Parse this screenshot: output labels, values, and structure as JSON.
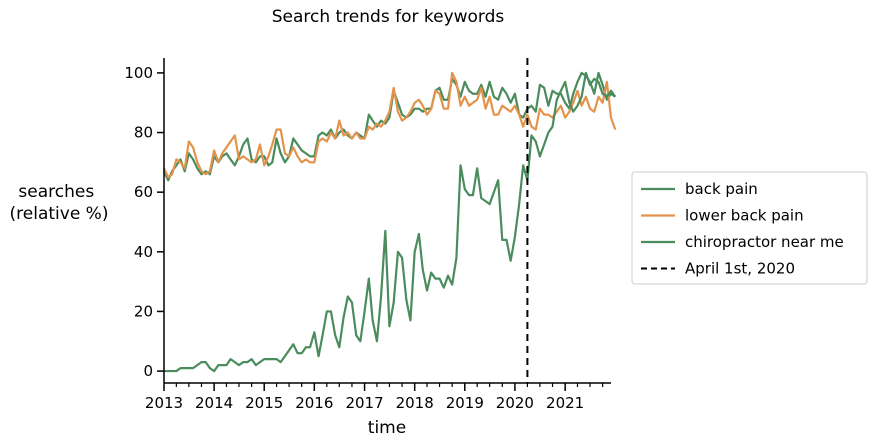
{
  "chart_data": {
    "type": "line",
    "title": "Search trends for keywords",
    "xlabel": "time",
    "ylabel": [
      "searches",
      "(relative %)"
    ],
    "xlim": [
      "2013-01-01",
      "2021-12-01"
    ],
    "ylim": [
      -4,
      105
    ],
    "x_ticks": [
      "2013",
      "2014",
      "2015",
      "2016",
      "2017",
      "2018",
      "2019",
      "2020",
      "2021"
    ],
    "y_ticks": [
      0,
      20,
      40,
      60,
      80,
      100
    ],
    "grid": false,
    "legend_position": "right",
    "x_start": "2013-01",
    "series": [
      {
        "name": "back pain",
        "color": "#4a8c5c",
        "values": [
          67,
          64,
          67,
          69,
          71,
          67,
          73,
          71,
          68,
          66,
          67,
          66,
          72,
          70,
          72,
          73,
          71,
          69,
          72,
          76,
          78,
          71,
          70,
          72,
          72,
          69,
          70,
          78,
          73,
          70,
          72,
          78,
          76,
          74,
          73,
          72,
          72,
          79,
          80,
          79,
          81,
          78,
          80,
          81,
          79,
          78,
          80,
          79,
          78,
          86,
          84,
          82,
          84,
          83,
          85,
          94,
          90,
          86,
          85,
          86,
          88,
          88,
          87,
          88,
          88,
          94,
          95,
          91,
          91,
          98,
          96,
          92,
          97,
          94,
          93,
          93,
          96,
          92,
          97,
          92,
          91,
          95,
          93,
          90,
          93,
          86,
          85,
          88,
          89,
          87,
          96,
          95,
          89,
          94,
          93,
          93,
          90,
          88,
          93,
          97,
          100,
          99,
          97,
          93,
          100,
          96,
          91,
          93,
          92
        ]
      },
      {
        "name": "lower back pain",
        "color": "#e3934b",
        "values": [
          68,
          65,
          66,
          71,
          70,
          68,
          77,
          75,
          70,
          67,
          66,
          67,
          74,
          70,
          73,
          75,
          77,
          79,
          71,
          72,
          71,
          70,
          71,
          76,
          69,
          72,
          76,
          81,
          81,
          73,
          72,
          75,
          72,
          70,
          71,
          70,
          70,
          77,
          78,
          77,
          80,
          78,
          84,
          79,
          80,
          78,
          80,
          78,
          78,
          82,
          81,
          83,
          82,
          84,
          87,
          95,
          87,
          84,
          85,
          87,
          90,
          91,
          89,
          86,
          88,
          94,
          93,
          88,
          88,
          100,
          97,
          89,
          92,
          89,
          90,
          91,
          95,
          88,
          92,
          86,
          86,
          89,
          88,
          87,
          89,
          86,
          82,
          86,
          82,
          81,
          88,
          86,
          86,
          85,
          87,
          89,
          85,
          87,
          90,
          94,
          89,
          92,
          88,
          87,
          92,
          90,
          97,
          85,
          81
        ]
      },
      {
        "name": "chiropractor near me",
        "color": "#4a8c5c",
        "values": [
          0,
          0,
          0,
          0,
          1,
          1,
          1,
          1,
          2,
          3,
          3,
          1,
          0,
          2,
          2,
          2,
          4,
          3,
          2,
          3,
          3,
          4,
          2,
          3,
          4,
          4,
          4,
          4,
          3,
          5,
          7,
          9,
          6,
          6,
          8,
          8,
          13,
          5,
          12,
          20,
          20,
          12,
          8,
          18,
          25,
          23,
          12,
          10,
          20,
          31,
          17,
          10,
          25,
          47,
          15,
          23,
          40,
          38,
          24,
          17,
          40,
          46,
          34,
          27,
          33,
          31,
          31,
          28,
          32,
          29,
          38,
          69,
          61,
          59,
          59,
          68,
          58,
          57,
          56,
          60,
          64,
          44,
          44,
          37,
          45,
          56,
          69,
          64,
          79,
          77,
          72,
          76,
          80,
          82,
          91,
          94,
          97,
          90,
          87,
          89,
          92,
          100,
          96,
          98,
          97,
          93,
          92,
          94,
          92
        ]
      },
      {
        "name": "April 1st, 2020",
        "color": "#000000",
        "dashed": true,
        "x": "2020-04-01"
      }
    ]
  }
}
